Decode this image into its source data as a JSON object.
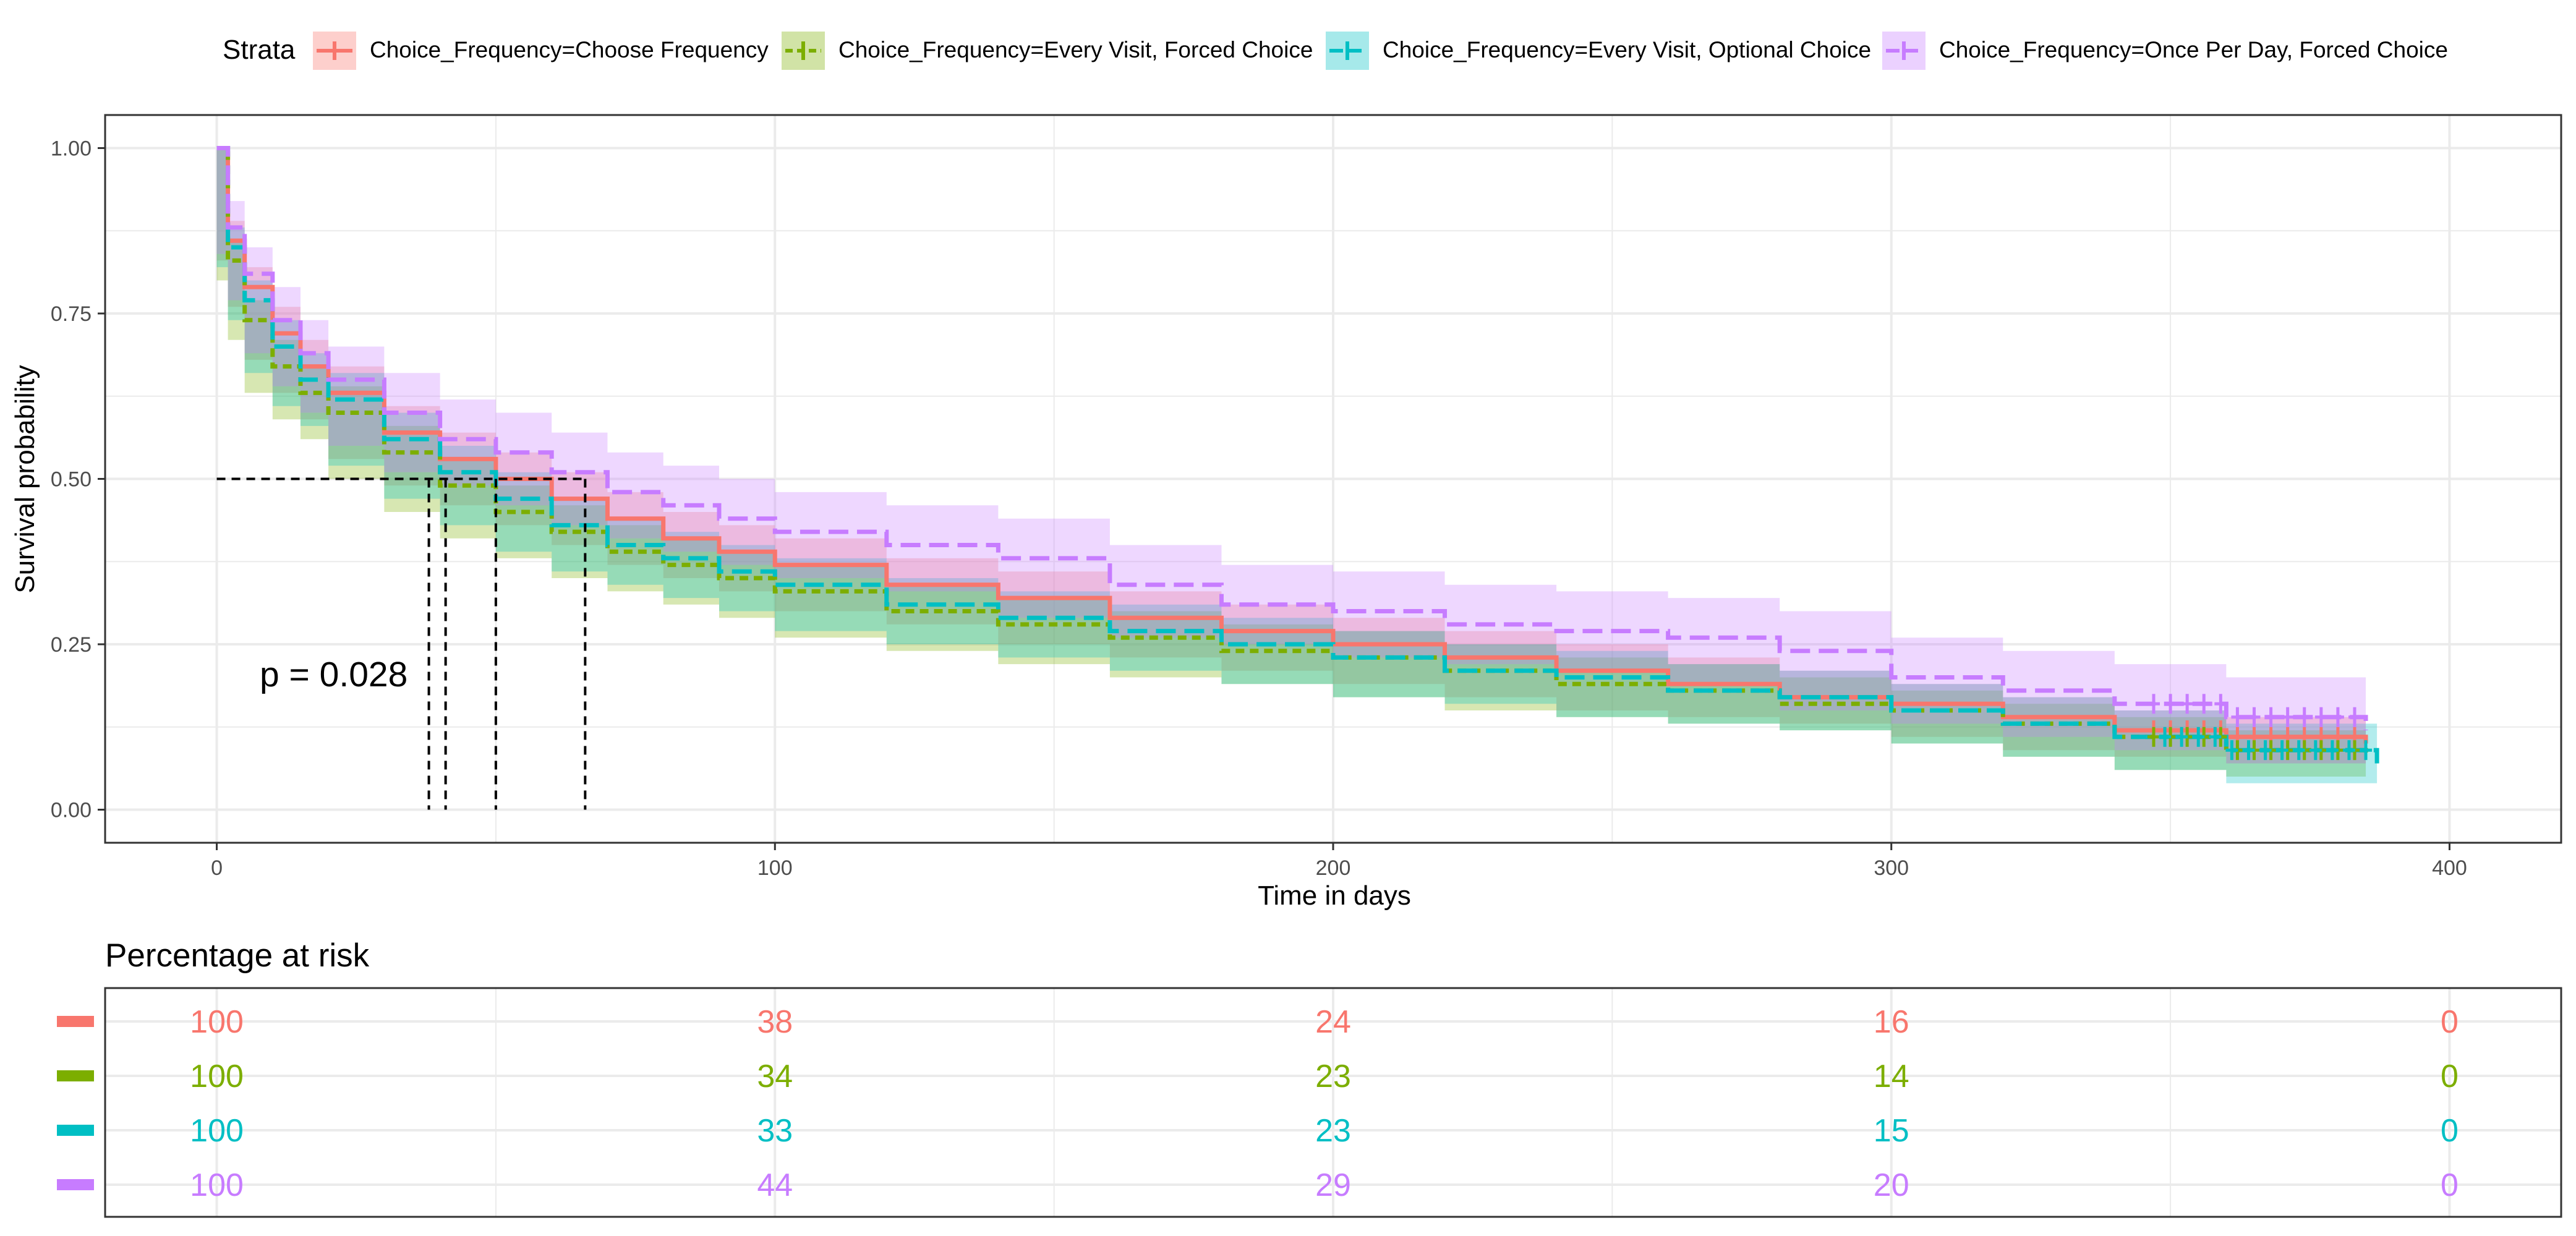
{
  "legend": {
    "title": "Strata",
    "items": [
      "Choice_Frequency=Choose Frequency",
      "Choice_Frequency=Every Visit, Forced Choice",
      "Choice_Frequency=Every Visit, Optional Choice",
      "Choice_Frequency=Once Per Day, Forced Choice"
    ]
  },
  "colors": {
    "choose": "#F8766D",
    "every_forced": "#7CAE00",
    "every_optional": "#00BFC4",
    "once_per_day": "#C77CFF",
    "grid": "#EBEBEB",
    "panel_border": "#333333"
  },
  "chart_data": [
    {
      "type": "line",
      "subtype": "kaplan-meier",
      "xlabel": "Time in days",
      "ylabel": "Survival probability",
      "xlim": [
        -20,
        420
      ],
      "ylim": [
        -0.05,
        1.05
      ],
      "x_ticks": [
        0,
        100,
        200,
        300,
        400
      ],
      "x_tick_labels": [
        "0",
        "100",
        "200",
        "300",
        "400"
      ],
      "y_ticks": [
        0,
        0.25,
        0.5,
        0.75,
        1.0
      ],
      "y_tick_labels": [
        "0.00",
        "0.25",
        "0.50",
        "0.75",
        "1.00"
      ],
      "grid": true,
      "legend_position": "top",
      "annotation": "p = 0.028",
      "median_survival_days": {
        "Choose Frequency": 50,
        "Every Visit, Forced Choice": 38,
        "Every Visit, Optional Choice": 41,
        "Once Per Day, Forced Choice": 66
      },
      "series": [
        {
          "name": "Choice_Frequency=Choose Frequency",
          "color": "#F8766D",
          "dash": "solid",
          "x": [
            0,
            2,
            5,
            10,
            15,
            20,
            30,
            40,
            50,
            60,
            70,
            80,
            90,
            100,
            120,
            140,
            160,
            180,
            200,
            220,
            240,
            260,
            280,
            300,
            320,
            340,
            360,
            385
          ],
          "y": [
            1.0,
            0.86,
            0.79,
            0.72,
            0.67,
            0.63,
            0.57,
            0.53,
            0.5,
            0.47,
            0.44,
            0.41,
            0.39,
            0.37,
            0.34,
            0.32,
            0.29,
            0.27,
            0.25,
            0.23,
            0.21,
            0.19,
            0.17,
            0.16,
            0.14,
            0.12,
            0.11,
            0.1
          ],
          "ci_lower": [
            1.0,
            0.83,
            0.76,
            0.68,
            0.63,
            0.59,
            0.53,
            0.49,
            0.46,
            0.43,
            0.4,
            0.37,
            0.35,
            0.33,
            0.3,
            0.28,
            0.25,
            0.23,
            0.21,
            0.19,
            0.17,
            0.15,
            0.14,
            0.13,
            0.11,
            0.09,
            0.08,
            0.07
          ],
          "ci_upper": [
            1.0,
            0.89,
            0.82,
            0.76,
            0.71,
            0.67,
            0.61,
            0.57,
            0.54,
            0.51,
            0.48,
            0.45,
            0.43,
            0.41,
            0.38,
            0.36,
            0.33,
            0.31,
            0.29,
            0.27,
            0.25,
            0.23,
            0.21,
            0.19,
            0.17,
            0.15,
            0.14,
            0.13
          ]
        },
        {
          "name": "Choice_Frequency=Every Visit, Forced Choice",
          "color": "#7CAE00",
          "dash": "short",
          "x": [
            0,
            2,
            5,
            10,
            15,
            20,
            30,
            40,
            50,
            60,
            70,
            80,
            90,
            100,
            120,
            140,
            160,
            180,
            200,
            220,
            240,
            260,
            280,
            300,
            320,
            340,
            360,
            385
          ],
          "y": [
            1.0,
            0.83,
            0.74,
            0.67,
            0.63,
            0.6,
            0.54,
            0.49,
            0.45,
            0.42,
            0.39,
            0.37,
            0.35,
            0.33,
            0.3,
            0.28,
            0.26,
            0.24,
            0.23,
            0.21,
            0.19,
            0.18,
            0.16,
            0.15,
            0.13,
            0.11,
            0.09,
            0.08
          ],
          "ci_lower": [
            1.0,
            0.8,
            0.71,
            0.63,
            0.59,
            0.56,
            0.5,
            0.45,
            0.41,
            0.38,
            0.35,
            0.33,
            0.31,
            0.29,
            0.26,
            0.24,
            0.22,
            0.2,
            0.19,
            0.17,
            0.15,
            0.14,
            0.13,
            0.12,
            0.1,
            0.08,
            0.06,
            0.05
          ],
          "ci_upper": [
            1.0,
            0.86,
            0.77,
            0.71,
            0.67,
            0.64,
            0.58,
            0.53,
            0.49,
            0.46,
            0.43,
            0.41,
            0.39,
            0.37,
            0.34,
            0.32,
            0.3,
            0.28,
            0.27,
            0.25,
            0.23,
            0.22,
            0.2,
            0.18,
            0.16,
            0.14,
            0.12,
            0.11
          ]
        },
        {
          "name": "Choice_Frequency=Every Visit, Optional Choice",
          "color": "#00BFC4",
          "dash": "long",
          "x": [
            0,
            2,
            5,
            10,
            15,
            20,
            30,
            40,
            50,
            60,
            70,
            80,
            90,
            100,
            120,
            140,
            160,
            180,
            200,
            220,
            240,
            260,
            280,
            300,
            320,
            340,
            360,
            387
          ],
          "y": [
            1.0,
            0.85,
            0.77,
            0.7,
            0.65,
            0.62,
            0.56,
            0.51,
            0.47,
            0.43,
            0.4,
            0.38,
            0.36,
            0.34,
            0.31,
            0.29,
            0.27,
            0.25,
            0.23,
            0.21,
            0.2,
            0.18,
            0.17,
            0.15,
            0.13,
            0.11,
            0.09,
            0.07
          ],
          "ci_lower": [
            1.0,
            0.82,
            0.74,
            0.66,
            0.61,
            0.58,
            0.52,
            0.47,
            0.43,
            0.39,
            0.36,
            0.34,
            0.32,
            0.3,
            0.27,
            0.25,
            0.23,
            0.21,
            0.19,
            0.17,
            0.16,
            0.14,
            0.13,
            0.12,
            0.1,
            0.08,
            0.06,
            0.04
          ],
          "ci_upper": [
            1.0,
            0.88,
            0.8,
            0.74,
            0.69,
            0.66,
            0.6,
            0.55,
            0.51,
            0.47,
            0.44,
            0.42,
            0.4,
            0.38,
            0.35,
            0.33,
            0.31,
            0.29,
            0.27,
            0.25,
            0.24,
            0.22,
            0.21,
            0.19,
            0.17,
            0.15,
            0.13,
            0.11
          ]
        },
        {
          "name": "Choice_Frequency=Once Per Day, Forced Choice",
          "color": "#C77CFF",
          "dash": "long",
          "x": [
            0,
            2,
            5,
            10,
            15,
            20,
            30,
            40,
            50,
            60,
            70,
            80,
            90,
            100,
            120,
            140,
            160,
            180,
            200,
            220,
            240,
            260,
            280,
            300,
            320,
            340,
            360,
            385
          ],
          "y": [
            1.0,
            0.88,
            0.81,
            0.74,
            0.69,
            0.65,
            0.6,
            0.56,
            0.54,
            0.51,
            0.48,
            0.46,
            0.44,
            0.42,
            0.4,
            0.38,
            0.34,
            0.31,
            0.3,
            0.28,
            0.27,
            0.26,
            0.24,
            0.2,
            0.18,
            0.16,
            0.14,
            0.12
          ],
          "ci_lower": [
            1.0,
            0.84,
            0.77,
            0.69,
            0.64,
            0.6,
            0.55,
            0.51,
            0.49,
            0.46,
            0.43,
            0.41,
            0.39,
            0.37,
            0.35,
            0.33,
            0.29,
            0.26,
            0.25,
            0.23,
            0.22,
            0.21,
            0.19,
            0.15,
            0.13,
            0.11,
            0.09,
            0.07
          ],
          "ci_upper": [
            1.0,
            0.92,
            0.85,
            0.79,
            0.74,
            0.7,
            0.66,
            0.62,
            0.6,
            0.57,
            0.54,
            0.52,
            0.5,
            0.48,
            0.46,
            0.44,
            0.4,
            0.37,
            0.36,
            0.34,
            0.33,
            0.32,
            0.3,
            0.26,
            0.24,
            0.22,
            0.2,
            0.18
          ]
        }
      ]
    },
    {
      "type": "table",
      "title": "Percentage at risk",
      "x_ticks": [
        0,
        100,
        200,
        300,
        400
      ],
      "rows": [
        {
          "color": "#F8766D",
          "values": [
            "100",
            "38",
            "24",
            "16",
            "0"
          ]
        },
        {
          "color": "#7CAE00",
          "values": [
            "100",
            "34",
            "23",
            "14",
            "0"
          ]
        },
        {
          "color": "#00BFC4",
          "values": [
            "100",
            "33",
            "23",
            "15",
            "0"
          ]
        },
        {
          "color": "#C77CFF",
          "values": [
            "100",
            "44",
            "29",
            "20",
            "0"
          ]
        }
      ]
    }
  ]
}
